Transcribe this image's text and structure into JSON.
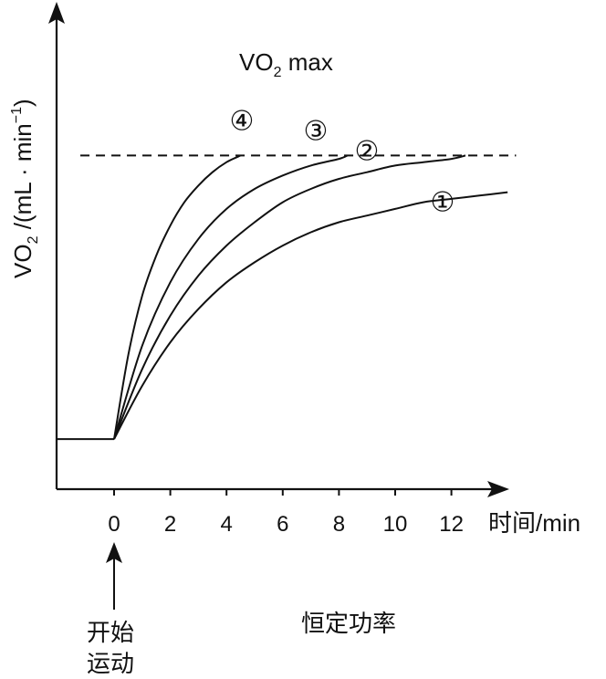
{
  "chart_data": {
    "type": "line",
    "ylabel_base": "VO",
    "ylabel_sub": "2",
    "ylabel_rest": " /(mL · min",
    "ylabel_sup": "−1",
    "ylabel_close": ")",
    "xlabel": "时间/min",
    "xlim": [
      -2,
      13.5
    ],
    "ylim": [
      0,
      1.2
    ],
    "x_ticks": [
      0,
      2,
      4,
      6,
      8,
      10,
      12
    ],
    "baseline": {
      "x": [
        -2,
        0
      ],
      "y": 0.15
    },
    "vo2max": {
      "label_base": "VO",
      "label_sub": "2",
      "label_rest": " max",
      "y": 1.0,
      "x_range": [
        -1.2,
        14.3
      ],
      "style": "dashed"
    },
    "series": [
      {
        "name": "①",
        "points": [
          [
            0,
            0.15
          ],
          [
            1,
            0.31
          ],
          [
            2,
            0.44
          ],
          [
            3,
            0.54
          ],
          [
            4,
            0.62
          ],
          [
            5,
            0.68
          ],
          [
            6,
            0.73
          ],
          [
            7,
            0.77
          ],
          [
            8,
            0.8
          ],
          [
            9,
            0.82
          ],
          [
            10,
            0.84
          ],
          [
            11,
            0.86
          ],
          [
            12,
            0.87
          ],
          [
            13,
            0.88
          ],
          [
            14,
            0.89
          ]
        ]
      },
      {
        "name": "②",
        "points": [
          [
            0,
            0.15
          ],
          [
            1,
            0.36
          ],
          [
            2,
            0.52
          ],
          [
            3,
            0.64
          ],
          [
            4,
            0.73
          ],
          [
            5,
            0.8
          ],
          [
            6,
            0.86
          ],
          [
            7,
            0.9
          ],
          [
            8,
            0.93
          ],
          [
            9,
            0.95
          ],
          [
            10,
            0.97
          ],
          [
            11,
            0.98
          ],
          [
            12,
            0.99
          ],
          [
            12.5,
            1.0
          ]
        ]
      },
      {
        "name": "③",
        "points": [
          [
            0,
            0.15
          ],
          [
            1,
            0.43
          ],
          [
            2,
            0.62
          ],
          [
            3,
            0.75
          ],
          [
            4,
            0.84
          ],
          [
            5,
            0.9
          ],
          [
            6,
            0.94
          ],
          [
            7,
            0.97
          ],
          [
            8,
            0.99
          ],
          [
            8.3,
            1.0
          ]
        ]
      },
      {
        "name": "④",
        "points": [
          [
            0,
            0.15
          ],
          [
            0.5,
            0.4
          ],
          [
            1,
            0.58
          ],
          [
            1.5,
            0.7
          ],
          [
            2,
            0.79
          ],
          [
            2.5,
            0.86
          ],
          [
            3,
            0.91
          ],
          [
            3.5,
            0.95
          ],
          [
            4,
            0.98
          ],
          [
            4.5,
            1.0
          ]
        ]
      }
    ],
    "annotations": {
      "start_line1": "开始",
      "start_line2": "运动",
      "power_label": "恒定功率"
    }
  }
}
